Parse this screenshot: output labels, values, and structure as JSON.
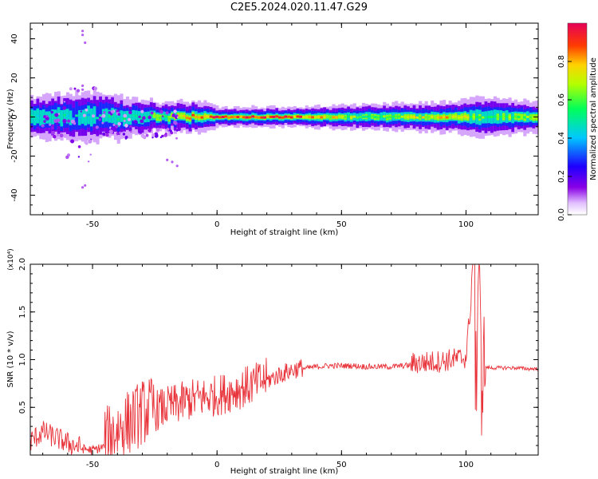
{
  "figure_title": "C2E5.2024.020.11.47.G29",
  "chart_data": [
    {
      "type": "heatmap",
      "xlabel": "Height of straight line (km)",
      "ylabel": "Frequency (Hz)",
      "xlim": [
        -75,
        129
      ],
      "ylim": [
        -50,
        48
      ],
      "xticks": [
        -50,
        0,
        50,
        100
      ],
      "yticks": [
        -40,
        -20,
        0,
        20,
        40
      ],
      "grid": false,
      "colorbar": {
        "label": "Normalized spectral amplitude",
        "range": [
          0.0,
          1.0
        ],
        "ticks": [
          "0.0",
          "0.2",
          "0.4",
          "0.6",
          "0.8"
        ],
        "colormap": "rainbow (purple-blue-cyan-green-yellow-red-magenta)",
        "colors": [
          "#ffffff",
          "#8a00e6",
          "#1e00ff",
          "#00c8ff",
          "#00ff5a",
          "#b4ff00",
          "#ffd200",
          "#ff3c00",
          "#ff0a50",
          "#e6005a"
        ]
      },
      "ridge": {
        "center_frequency_hz": 0,
        "description_points": [
          {
            "x": -75,
            "halfwidth_hz": 4,
            "peak_amp": 0.5
          },
          {
            "x": -50,
            "halfwidth_hz": 5,
            "peak_amp": 0.45
          },
          {
            "x": -25,
            "halfwidth_hz": 3,
            "peak_amp": 0.6
          },
          {
            "x": -5,
            "halfwidth_hz": 3,
            "peak_amp": 0.9
          },
          {
            "x": 0,
            "halfwidth_hz": 2,
            "peak_amp": 1.0
          },
          {
            "x": 30,
            "halfwidth_hz": 2,
            "peak_amp": 0.95
          },
          {
            "x": 60,
            "halfwidth_hz": 2.5,
            "peak_amp": 0.6
          },
          {
            "x": 95,
            "halfwidth_hz": 3,
            "peak_amp": 0.8
          },
          {
            "x": 105,
            "halfwidth_hz": 4,
            "peak_amp": 0.6
          },
          {
            "x": 129,
            "halfwidth_hz": 3,
            "peak_amp": 0.7
          }
        ]
      }
    },
    {
      "type": "line",
      "xlabel": "Height of straight line (km)",
      "ylabel": "SNR (10 * v/v)",
      "yscale_label": "(x10⁴)",
      "xlim": [
        -75,
        129
      ],
      "ylim": [
        0,
        2.0
      ],
      "xticks": [
        -50,
        0,
        50,
        100
      ],
      "yticks": [
        "0.5",
        "1.0",
        "1.5",
        "2.0"
      ],
      "grid": false,
      "series": [
        {
          "color": "#e8333a",
          "x": [
            -75,
            -70,
            -65,
            -60,
            -55,
            -50,
            -45,
            -40,
            -35,
            -30,
            -25,
            -20,
            -15,
            -10,
            -5,
            0,
            5,
            10,
            15,
            20,
            25,
            30,
            35,
            40,
            45,
            50,
            55,
            60,
            65,
            70,
            75,
            80,
            85,
            90,
            95,
            100,
            103,
            104,
            105,
            106,
            107,
            110,
            115,
            120,
            125,
            129
          ],
          "y": [
            0.12,
            0.22,
            0.16,
            0.1,
            0.06,
            0.04,
            0.08,
            0.2,
            0.28,
            0.38,
            0.42,
            0.46,
            0.5,
            0.54,
            0.56,
            0.58,
            0.62,
            0.66,
            0.7,
            0.76,
            0.82,
            0.87,
            0.9,
            0.92,
            0.93,
            0.93,
            0.93,
            0.92,
            0.92,
            0.92,
            0.93,
            0.94,
            0.95,
            0.96,
            0.98,
            1.0,
            1.9,
            0.4,
            1.85,
            0.5,
            0.92,
            0.91,
            0.91,
            0.91,
            0.9,
            0.9
          ]
        }
      ]
    }
  ]
}
